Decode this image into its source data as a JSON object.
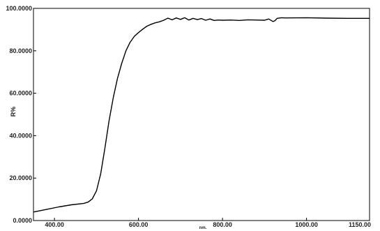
{
  "chart_data": {
    "type": "line",
    "title": "",
    "xlabel": "nm.",
    "ylabel": "R%",
    "xlim": [
      350,
      1150
    ],
    "ylim": [
      0,
      100
    ],
    "grid": false,
    "x_ticks": [
      400,
      600,
      800,
      1000,
      1150
    ],
    "x_tick_labels": [
      "400.00",
      "600.00",
      "800.00",
      "1000.00",
      "1150.00"
    ],
    "y_ticks": [
      0,
      20,
      40,
      60,
      80,
      100
    ],
    "y_tick_labels": [
      "0.0000",
      "20.0000",
      "40.0000",
      "60.0000",
      "80.0000",
      "100.0000"
    ],
    "series": [
      {
        "color": "#000000",
        "x": [
          350,
          380,
          410,
          440,
          470,
          480,
          490,
          500,
          510,
          520,
          530,
          540,
          550,
          560,
          570,
          580,
          590,
          600,
          610,
          620,
          630,
          640,
          650,
          660,
          670,
          680,
          690,
          700,
          710,
          720,
          730,
          740,
          750,
          760,
          770,
          780,
          790,
          800,
          820,
          840,
          860,
          880,
          900,
          910,
          920,
          925,
          930,
          940,
          950,
          1000,
          1050,
          1100,
          1150
        ],
        "y": [
          4.0,
          5.2,
          6.4,
          7.4,
          8.1,
          8.7,
          10.2,
          14.0,
          22.0,
          34.0,
          47.0,
          58.0,
          67.0,
          74.0,
          80.0,
          84.0,
          86.8,
          88.6,
          90.2,
          91.6,
          92.5,
          93.2,
          93.7,
          94.4,
          95.4,
          94.6,
          95.5,
          94.8,
          95.6,
          94.5,
          95.3,
          94.7,
          95.2,
          94.4,
          95.0,
          94.3,
          94.5,
          94.4,
          94.5,
          94.3,
          94.6,
          94.5,
          94.4,
          95.0,
          93.8,
          94.2,
          95.3,
          95.6,
          95.5,
          95.6,
          95.4,
          95.3,
          95.3
        ]
      }
    ]
  }
}
